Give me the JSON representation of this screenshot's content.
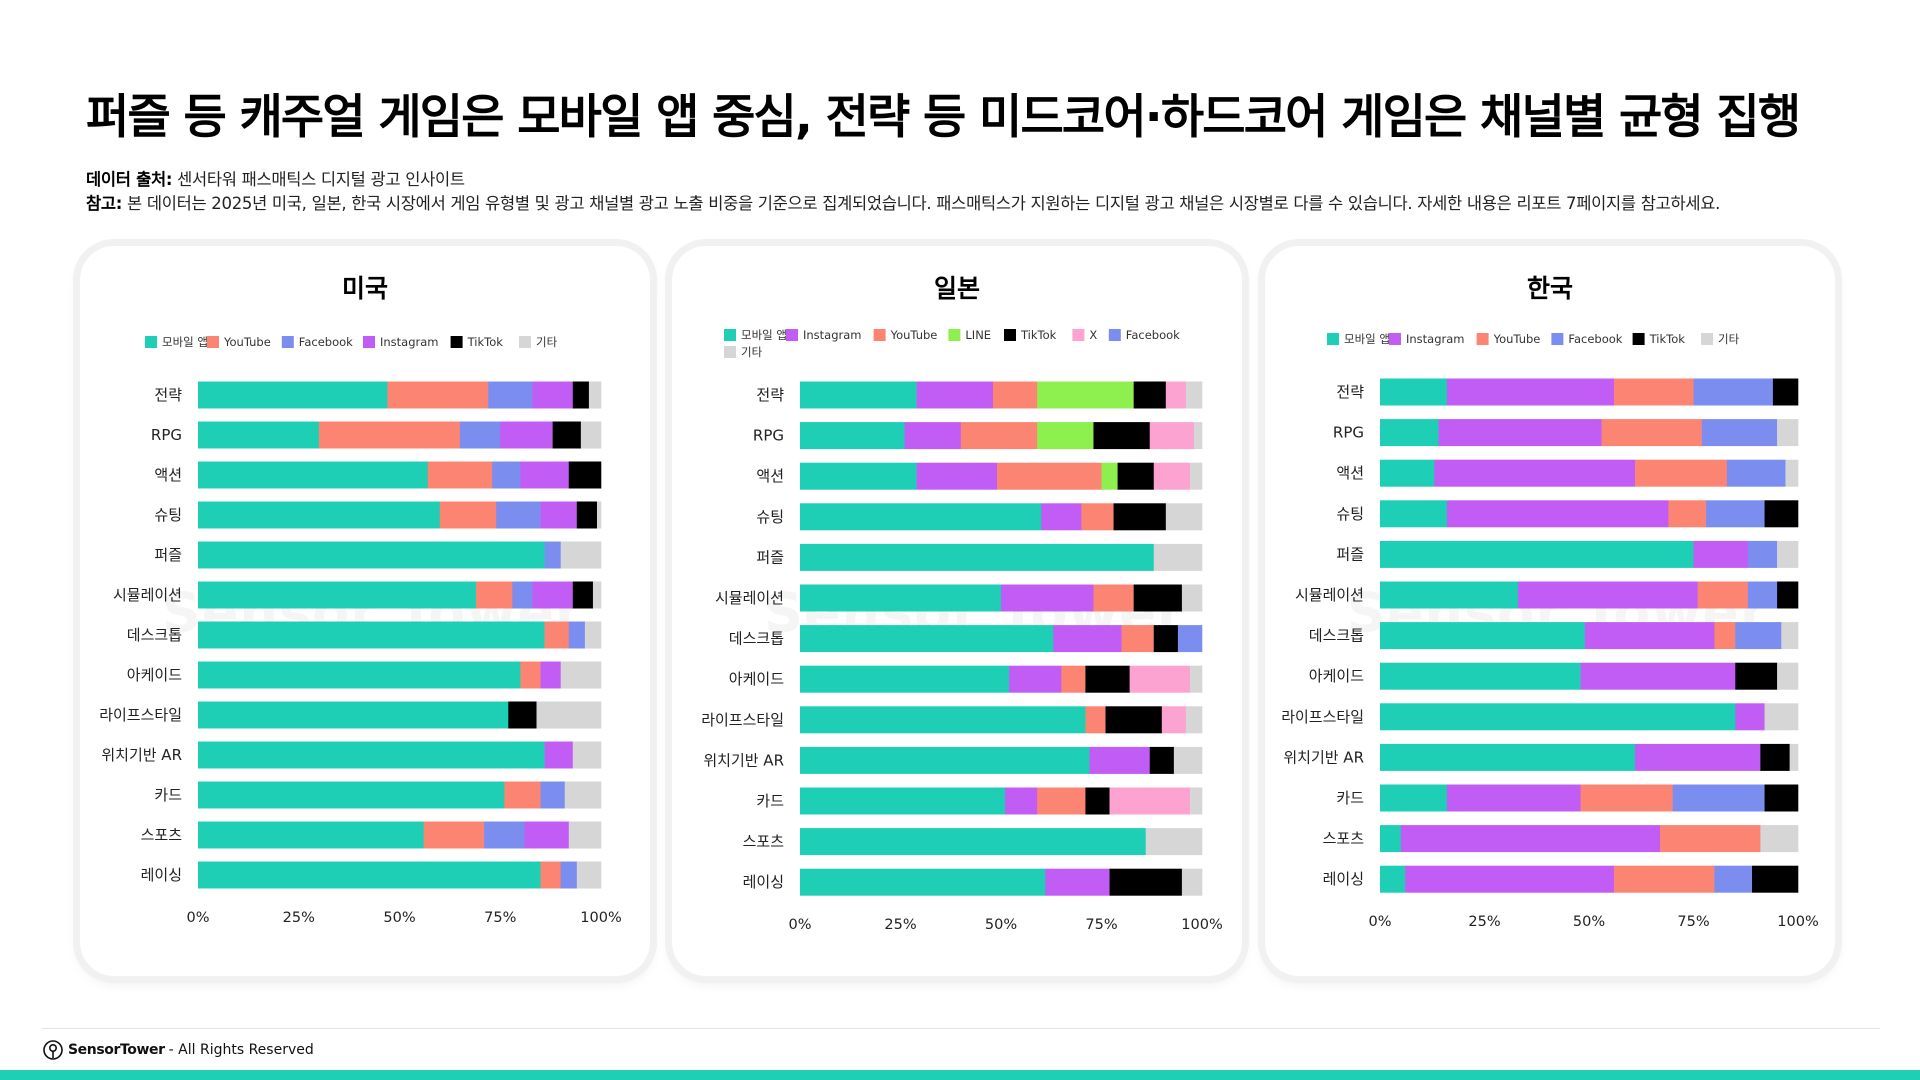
{
  "title": "퍼즐 등 캐주얼 게임은 모바일 앱 중심, 전략 등 미드코어·하드코어 게임은 채널별 균형 집행",
  "source": {
    "label": "데이터 출처:",
    "text": "센서타워 패스매틱스 디지털 광고 인사이트"
  },
  "note": {
    "label": "참고:",
    "text": "본 데이터는 2025년 미국, 일본, 한국 시장에서 게임 유형별 및 광고 채널별 광고 노출 비중을 기준으로 집계되었습니다. 패스매틱스가 지원하는 디지털 광고 채널은 시장별로 다를 수 있습니다. 자세한 내용은 리포트 7페이지를 참고하세요."
  },
  "watermark": "Sensor Tower",
  "footer": {
    "brand": "SensorTower",
    "rights": "- All Rights Reserved"
  },
  "colors": {
    "모바일 앱": "#1ecfb5",
    "YouTube": "#fb8472",
    "Facebook": "#7b8ef0",
    "Instagram": "#c15cf5",
    "TikTok": "#000000",
    "기타": "#d6d6d6",
    "LINE": "#8ef04e",
    "X": "#fca3d2"
  },
  "chart_data": [
    {
      "type": "bar",
      "orientation": "horizontal",
      "stacked": true,
      "title": "미국",
      "legend": [
        "모바일 앱",
        "YouTube",
        "Facebook",
        "Instagram",
        "TikTok",
        "기타"
      ],
      "categories": [
        "전략",
        "RPG",
        "액션",
        "슈팅",
        "퍼즐",
        "시뮬레이션",
        "데스크톱",
        "아케이드",
        "라이프스타일",
        "위치기반 AR",
        "카드",
        "스포츠",
        "레이싱"
      ],
      "xticks": [
        "0%",
        "25%",
        "50%",
        "75%",
        "100%"
      ],
      "xlim": [
        0,
        100
      ],
      "series": [
        {
          "name": "모바일 앱",
          "values": [
            47,
            30,
            57,
            60,
            86,
            69,
            86,
            80,
            77,
            86,
            76,
            56,
            85
          ]
        },
        {
          "name": "YouTube",
          "values": [
            25,
            35,
            16,
            14,
            0,
            9,
            6,
            5,
            0,
            0,
            9,
            15,
            5
          ]
        },
        {
          "name": "Facebook",
          "values": [
            11,
            10,
            7,
            11,
            4,
            5,
            4,
            0,
            0,
            0,
            6,
            10,
            4
          ]
        },
        {
          "name": "Instagram",
          "values": [
            10,
            13,
            12,
            9,
            0,
            10,
            0,
            5,
            0,
            7,
            0,
            11,
            0
          ]
        },
        {
          "name": "TikTok",
          "values": [
            4,
            7,
            8,
            5,
            0,
            5,
            0,
            0,
            7,
            0,
            0,
            0,
            0
          ]
        },
        {
          "name": "기타",
          "values": [
            3,
            5,
            0,
            1,
            10,
            2,
            4,
            10,
            16,
            7,
            9,
            8,
            6
          ]
        }
      ]
    },
    {
      "type": "bar",
      "orientation": "horizontal",
      "stacked": true,
      "title": "일본",
      "legend": [
        "모바일 앱",
        "Instagram",
        "YouTube",
        "LINE",
        "TikTok",
        "X",
        "Facebook",
        "기타"
      ],
      "categories": [
        "전략",
        "RPG",
        "액션",
        "슈팅",
        "퍼즐",
        "시뮬레이션",
        "데스크톱",
        "아케이드",
        "라이프스타일",
        "위치기반 AR",
        "카드",
        "스포츠",
        "레이싱"
      ],
      "xticks": [
        "0%",
        "25%",
        "50%",
        "75%",
        "100%"
      ],
      "xlim": [
        0,
        100
      ],
      "series": [
        {
          "name": "모바일 앱",
          "values": [
            29,
            26,
            29,
            60,
            88,
            50,
            63,
            52,
            71,
            72,
            51,
            86,
            61
          ]
        },
        {
          "name": "Instagram",
          "values": [
            19,
            14,
            20,
            10,
            0,
            23,
            17,
            13,
            0,
            15,
            8,
            0,
            16
          ]
        },
        {
          "name": "YouTube",
          "values": [
            11,
            19,
            26,
            8,
            0,
            10,
            8,
            6,
            5,
            0,
            12,
            0,
            0
          ]
        },
        {
          "name": "LINE",
          "values": [
            24,
            14,
            4,
            0,
            0,
            0,
            0,
            0,
            0,
            0,
            0,
            0,
            0
          ]
        },
        {
          "name": "TikTok",
          "values": [
            8,
            14,
            9,
            13,
            0,
            12,
            6,
            11,
            14,
            6,
            6,
            0,
            18
          ]
        },
        {
          "name": "X",
          "values": [
            5,
            11,
            9,
            0,
            0,
            0,
            0,
            15,
            6,
            0,
            20,
            0,
            0
          ]
        },
        {
          "name": "Facebook",
          "values": [
            0,
            0,
            0,
            0,
            0,
            0,
            6,
            0,
            0,
            0,
            0,
            0,
            0
          ]
        },
        {
          "name": "기타",
          "values": [
            4,
            2,
            3,
            9,
            12,
            5,
            0,
            3,
            4,
            7,
            3,
            14,
            5
          ]
        }
      ]
    },
    {
      "type": "bar",
      "orientation": "horizontal",
      "stacked": true,
      "title": "한국",
      "legend": [
        "모바일 앱",
        "Instagram",
        "YouTube",
        "Facebook",
        "TikTok",
        "기타"
      ],
      "categories": [
        "전략",
        "RPG",
        "액션",
        "슈팅",
        "퍼즐",
        "시뮬레이션",
        "데스크톱",
        "아케이드",
        "라이프스타일",
        "위치기반 AR",
        "카드",
        "스포츠",
        "레이싱"
      ],
      "xticks": [
        "0%",
        "25%",
        "50%",
        "75%",
        "100%"
      ],
      "xlim": [
        0,
        100
      ],
      "series": [
        {
          "name": "모바일 앱",
          "values": [
            16,
            14,
            13,
            16,
            75,
            33,
            49,
            48,
            85,
            61,
            16,
            5,
            6
          ]
        },
        {
          "name": "Instagram",
          "values": [
            40,
            39,
            48,
            53,
            13,
            43,
            31,
            37,
            7,
            30,
            32,
            62,
            50
          ]
        },
        {
          "name": "YouTube",
          "values": [
            19,
            24,
            22,
            9,
            0,
            12,
            5,
            0,
            0,
            0,
            22,
            24,
            24
          ]
        },
        {
          "name": "Facebook",
          "values": [
            19,
            18,
            14,
            14,
            7,
            7,
            11,
            0,
            0,
            0,
            22,
            0,
            9
          ]
        },
        {
          "name": "TikTok",
          "values": [
            6,
            0,
            0,
            8,
            0,
            5,
            0,
            10,
            0,
            7,
            8,
            0,
            11
          ]
        },
        {
          "name": "기타",
          "values": [
            0,
            5,
            3,
            0,
            5,
            0,
            4,
            5,
            8,
            2,
            0,
            9,
            0
          ]
        }
      ]
    }
  ]
}
